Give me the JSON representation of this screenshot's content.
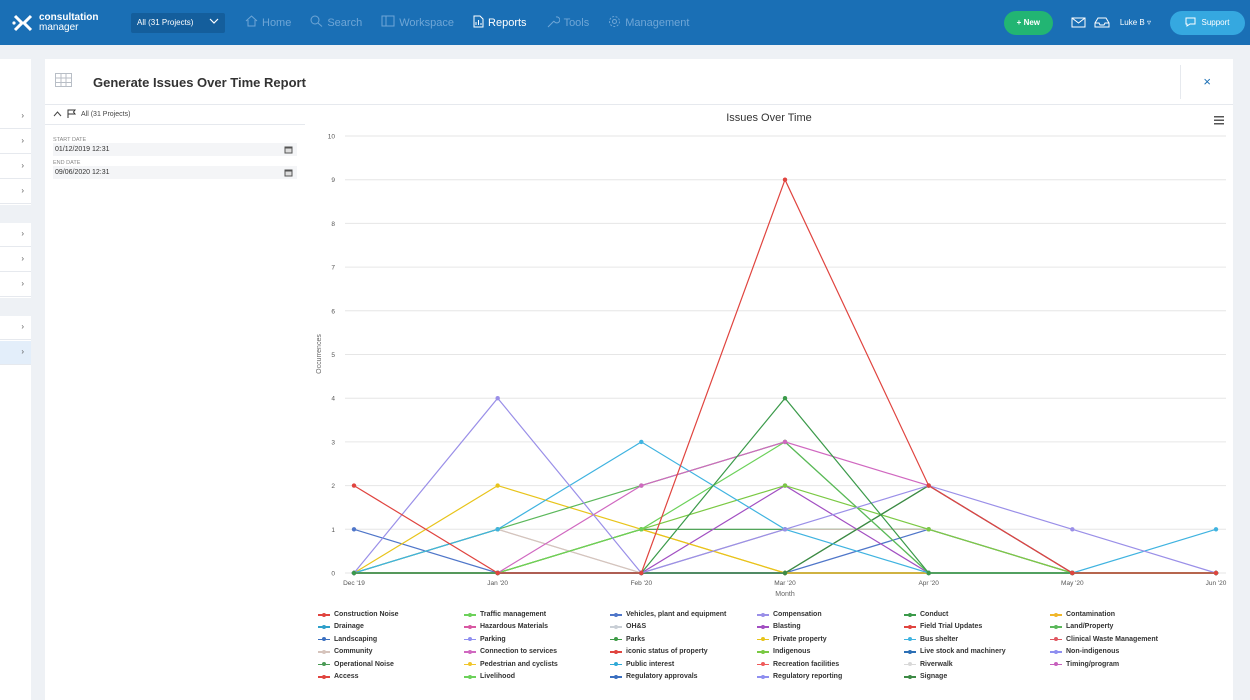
{
  "app": {
    "logo_line1": "consultation",
    "logo_line2": "manager",
    "project_selector": "All (31 Projects)"
  },
  "nav": [
    {
      "label": "Home",
      "icon": "home-icon"
    },
    {
      "label": "Search",
      "icon": "search-icon"
    },
    {
      "label": "Workspace",
      "icon": "workspace-icon"
    },
    {
      "label": "Reports",
      "icon": "reports-icon",
      "active": true
    },
    {
      "label": "Tools",
      "icon": "tools-icon"
    },
    {
      "label": "Management",
      "icon": "gear-icon"
    }
  ],
  "toolbar": {
    "new_label": "+ New",
    "user_label": "Luke B",
    "support_label": "Support"
  },
  "colors": {
    "nav_bg": "#1a6fb5",
    "new_button": "#22b573",
    "support_button": "#35a8e0"
  },
  "panel": {
    "title": "Generate Issues Over Time Report",
    "close_label": "×"
  },
  "filters": {
    "scope_label": "All (31 Projects)",
    "start_date_label": "START DATE",
    "start_date_value": "01/12/2019 12:31",
    "end_date_label": "END DATE",
    "end_date_value": "09/06/2020 12:31"
  },
  "chart_data": {
    "type": "line",
    "title": "Issues Over Time",
    "xlabel": "Month",
    "ylabel": "Occurrences",
    "categories": [
      "Dec '19",
      "Jan '20",
      "Feb '20",
      "Mar '20",
      "Apr '20",
      "May '20",
      "Jun '20"
    ],
    "ylim": [
      0,
      10
    ],
    "yticks": [
      0,
      1,
      2,
      3,
      4,
      5,
      6,
      7,
      8,
      9,
      10
    ],
    "grid": true,
    "legend_position": "bottom",
    "series": [
      {
        "name": "Construction Noise",
        "color": "#e0443f",
        "values": [
          2,
          0,
          0,
          9,
          2,
          0,
          0
        ]
      },
      {
        "name": "Traffic management",
        "color": "#6cd15a",
        "values": [
          0,
          0,
          1,
          3,
          0,
          0,
          0
        ]
      },
      {
        "name": "Vehicles, plant and equipment",
        "color": "#4f76c9",
        "values": [
          1,
          0,
          0,
          0,
          1,
          0,
          0
        ]
      },
      {
        "name": "Compensation",
        "color": "#9a8fe8",
        "values": [
          0,
          4,
          0,
          1,
          2,
          1,
          0
        ]
      },
      {
        "name": "Conduct",
        "color": "#3b9a4a",
        "values": [
          0,
          0,
          0,
          4,
          0,
          0,
          0
        ]
      },
      {
        "name": "Contamination",
        "color": "#f0b72a",
        "values": [
          0,
          0,
          1,
          0,
          0,
          0,
          0
        ]
      },
      {
        "name": "Drainage",
        "color": "#2f9fc9",
        "values": [
          0,
          0,
          0,
          0,
          0,
          0,
          0
        ]
      },
      {
        "name": "Hazardous Materials",
        "color": "#d858a2",
        "values": [
          0,
          0,
          0,
          0,
          0,
          0,
          0
        ]
      },
      {
        "name": "OH&S",
        "color": "#c9cfd6",
        "values": [
          0,
          1,
          0,
          1,
          1,
          0,
          0
        ]
      },
      {
        "name": "Blasting",
        "color": "#a24fc2",
        "values": [
          0,
          0,
          0,
          2,
          0,
          0,
          0
        ]
      },
      {
        "name": "Field Trial Updates",
        "color": "#e0443f",
        "values": [
          0,
          0,
          0,
          0,
          0,
          0,
          0
        ]
      },
      {
        "name": "Land/Property",
        "color": "#5bb85b",
        "values": [
          0,
          1,
          2,
          3,
          0,
          0,
          0
        ]
      },
      {
        "name": "Landscaping",
        "color": "#3a6fc0",
        "values": [
          0,
          0,
          0,
          0,
          0,
          0,
          0
        ]
      },
      {
        "name": "Parking",
        "color": "#8f8ff0",
        "values": [
          0,
          0,
          0,
          0,
          0,
          0,
          0
        ]
      },
      {
        "name": "Parks",
        "color": "#3d9a45",
        "values": [
          0,
          0,
          1,
          1,
          1,
          0,
          0
        ]
      },
      {
        "name": "Private property",
        "color": "#e8c41a",
        "values": [
          0,
          2,
          1,
          0,
          0,
          0,
          0
        ]
      },
      {
        "name": "Bus shelter",
        "color": "#3fb3e0",
        "values": [
          0,
          1,
          3,
          1,
          0,
          0,
          1
        ]
      },
      {
        "name": "Clinical Waste Management",
        "color": "#e05660",
        "values": [
          0,
          0,
          0,
          0,
          0,
          0,
          0
        ]
      },
      {
        "name": "Community",
        "color": "#d6c4bc",
        "values": [
          0,
          1,
          0,
          1,
          1,
          0,
          0
        ]
      },
      {
        "name": "Connection to services",
        "color": "#d068c0",
        "values": [
          0,
          0,
          2,
          3,
          2,
          0,
          0
        ]
      },
      {
        "name": "iconic status of property",
        "color": "#e0443f",
        "values": [
          0,
          0,
          0,
          0,
          0,
          0,
          0
        ]
      },
      {
        "name": "Indigenous",
        "color": "#7ac943",
        "values": [
          0,
          0,
          1,
          2,
          1,
          0,
          0
        ]
      },
      {
        "name": "Live stock and machinery",
        "color": "#2c6fb5",
        "values": [
          0,
          0,
          0,
          0,
          0,
          0,
          0
        ]
      },
      {
        "name": "Non-indigenous",
        "color": "#8f8ff0",
        "values": [
          0,
          0,
          0,
          0,
          0,
          0,
          0
        ]
      },
      {
        "name": "Operational Noise",
        "color": "#4a9a55",
        "values": [
          0,
          0,
          0,
          0,
          2,
          0,
          0
        ]
      },
      {
        "name": "Pedestrian and cyclists",
        "color": "#f0c52a",
        "values": [
          0,
          0,
          0,
          0,
          0,
          0,
          0
        ]
      },
      {
        "name": "Public interest",
        "color": "#2fa9d6",
        "values": [
          0,
          0,
          0,
          0,
          0,
          0,
          0
        ]
      },
      {
        "name": "Recreation facilities",
        "color": "#ef5a5a",
        "values": [
          0,
          0,
          0,
          0,
          0,
          0,
          0
        ]
      },
      {
        "name": "Riverwalk",
        "color": "#d8d8d8",
        "values": [
          0,
          0,
          0,
          0,
          0,
          0,
          0
        ]
      },
      {
        "name": "Timing/program",
        "color": "#c75fbd",
        "values": [
          0,
          0,
          0,
          0,
          0,
          0,
          0
        ]
      },
      {
        "name": "Access",
        "color": "#e0443f",
        "values": [
          0,
          0,
          0,
          0,
          0,
          0,
          0
        ]
      },
      {
        "name": "Livelihood",
        "color": "#6cd15a",
        "values": [
          0,
          0,
          0,
          0,
          0,
          0,
          0
        ]
      },
      {
        "name": "Regulatory approvals",
        "color": "#3a6fc0",
        "values": [
          0,
          0,
          0,
          0,
          0,
          0,
          0
        ]
      },
      {
        "name": "Regulatory reporting",
        "color": "#8f8ff0",
        "values": [
          0,
          0,
          0,
          0,
          0,
          0,
          0
        ]
      },
      {
        "name": "Signage",
        "color": "#3d8a45",
        "values": [
          0,
          0,
          0,
          0,
          2,
          0,
          0
        ]
      }
    ]
  }
}
